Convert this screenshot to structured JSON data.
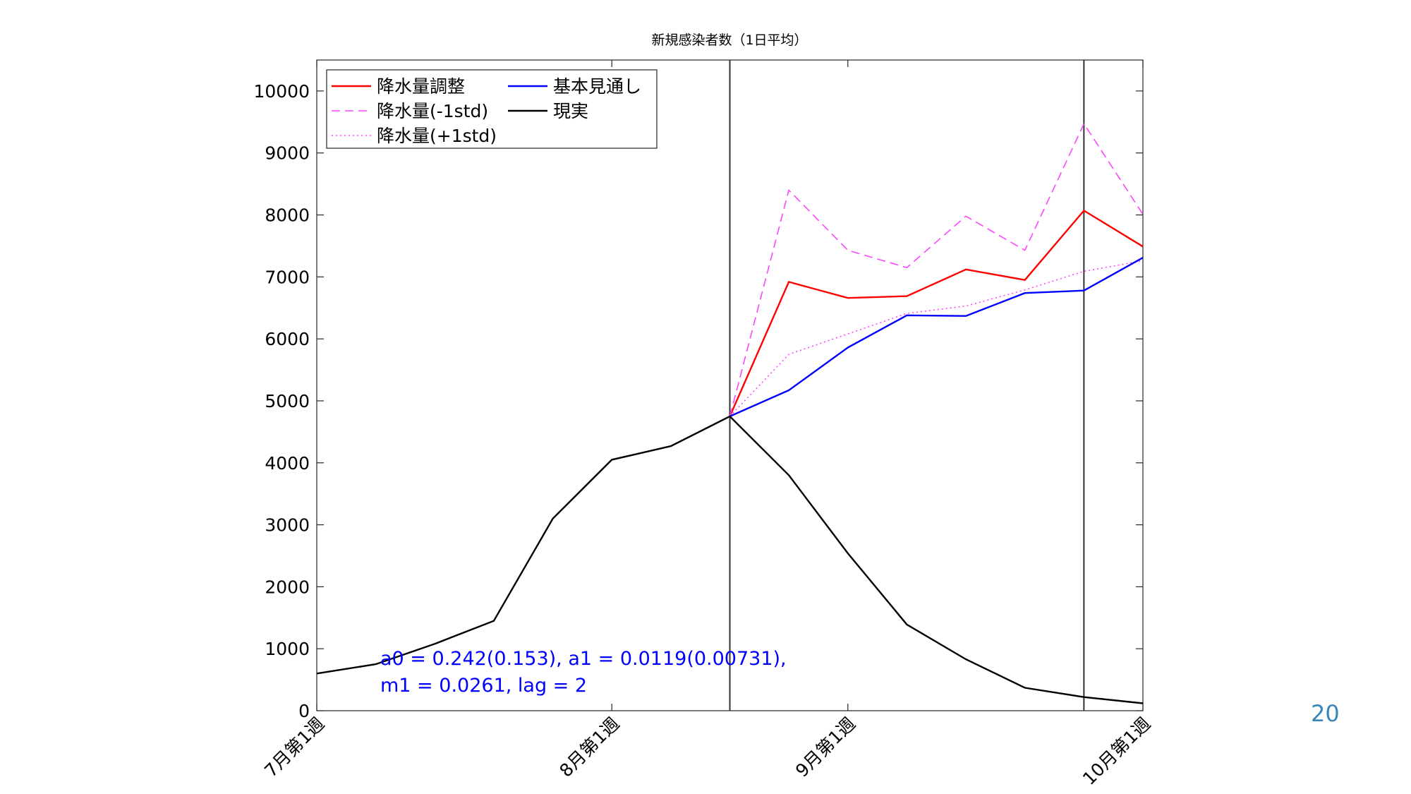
{
  "page": {
    "number": "20"
  },
  "chart_data": {
    "type": "line",
    "title": "新規感染者数（1日平均）",
    "xlabel": "",
    "ylabel": "",
    "x": [
      0,
      1,
      2,
      3,
      4,
      5,
      6,
      7,
      8,
      9,
      10,
      11,
      12,
      13,
      14
    ],
    "xlim": [
      0,
      14
    ],
    "ylim": [
      0,
      10500
    ],
    "yticks": [
      0,
      1000,
      2000,
      3000,
      4000,
      5000,
      6000,
      7000,
      8000,
      9000,
      10000
    ],
    "xticks": [
      {
        "x": 0,
        "label": "7月第1週"
      },
      {
        "x": 5,
        "label": "8月第1週"
      },
      {
        "x": 9,
        "label": "9月第1週"
      },
      {
        "x": 14,
        "label": "10月第1週"
      }
    ],
    "vlines": [
      7,
      13
    ],
    "grid": false,
    "legend_position": "top-left",
    "annotations": [
      "a0 = 0.242(0.153), a1 = 0.0119(0.00731),",
      "m1 = 0.0261, lag = 2"
    ],
    "annotation_color": "#0000ff",
    "series": [
      {
        "name": "降水量調整",
        "color": "#ff0000",
        "style": "solid",
        "x": [
          7,
          8,
          9,
          10,
          11,
          12,
          13,
          14
        ],
        "values": [
          4750,
          6920,
          6660,
          6690,
          7120,
          6950,
          8070,
          7490
        ]
      },
      {
        "name": "降水量(-1std)",
        "color": "#ff44ff",
        "style": "dashed",
        "x": [
          7,
          8,
          9,
          10,
          11,
          12,
          13,
          14
        ],
        "values": [
          4750,
          8400,
          7430,
          7150,
          7980,
          7430,
          9470,
          8010
        ]
      },
      {
        "name": "降水量(+1std)",
        "color": "#ff44ff",
        "style": "dotted",
        "x": [
          7,
          8,
          9,
          10,
          11,
          12,
          13,
          14
        ],
        "values": [
          4750,
          5750,
          6080,
          6410,
          6530,
          6790,
          7090,
          7260
        ]
      },
      {
        "name": "基本見通し",
        "color": "#0000ff",
        "style": "solid",
        "x": [
          7,
          8,
          9,
          10,
          11,
          12,
          13,
          14
        ],
        "values": [
          4750,
          5170,
          5860,
          6380,
          6370,
          6740,
          6780,
          7310
        ]
      },
      {
        "name": "現実",
        "color": "#000000",
        "style": "solid",
        "x": [
          0,
          1,
          2,
          3,
          4,
          5,
          6,
          7,
          8,
          9,
          10,
          11,
          12,
          13,
          14
        ],
        "values": [
          600,
          750,
          1080,
          1450,
          3100,
          4050,
          4270,
          4750,
          3800,
          2540,
          1390,
          830,
          370,
          220,
          120
        ]
      }
    ]
  }
}
